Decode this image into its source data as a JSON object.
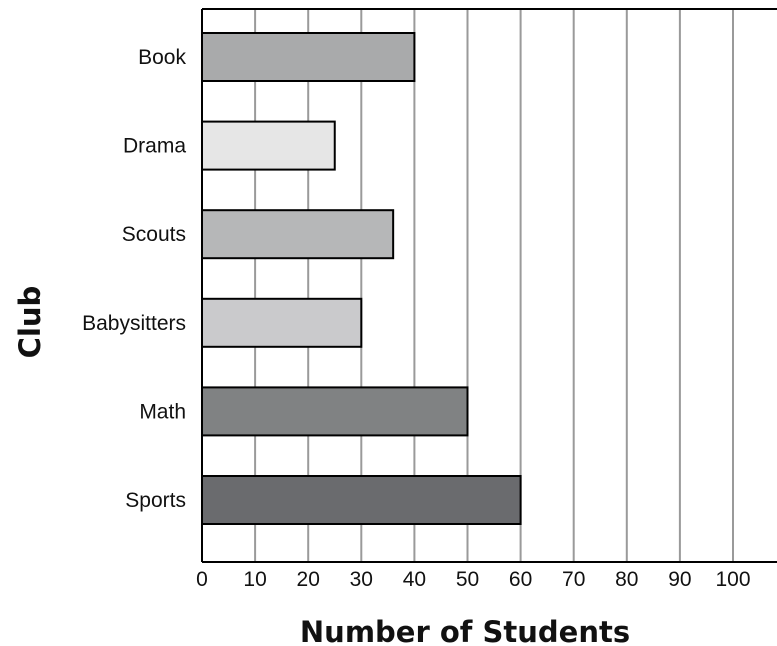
{
  "chart_data": {
    "type": "bar",
    "orientation": "horizontal",
    "categories": [
      "Book",
      "Drama",
      "Scouts",
      "Babysitters",
      "Math",
      "Sports"
    ],
    "values": [
      40,
      25,
      36,
      30,
      50,
      60
    ],
    "colors": [
      "#a9aaab",
      "#e6e6e6",
      "#b6b7b8",
      "#cacacc",
      "#808283",
      "#6a6b6e"
    ],
    "title": "",
    "xlabel": "Number of Students",
    "ylabel": "Club",
    "xlim": [
      0,
      100
    ],
    "x_ticks": [
      0,
      10,
      20,
      30,
      40,
      50,
      60,
      70,
      80,
      90,
      100
    ],
    "grid": "vertical",
    "legend": "none"
  }
}
